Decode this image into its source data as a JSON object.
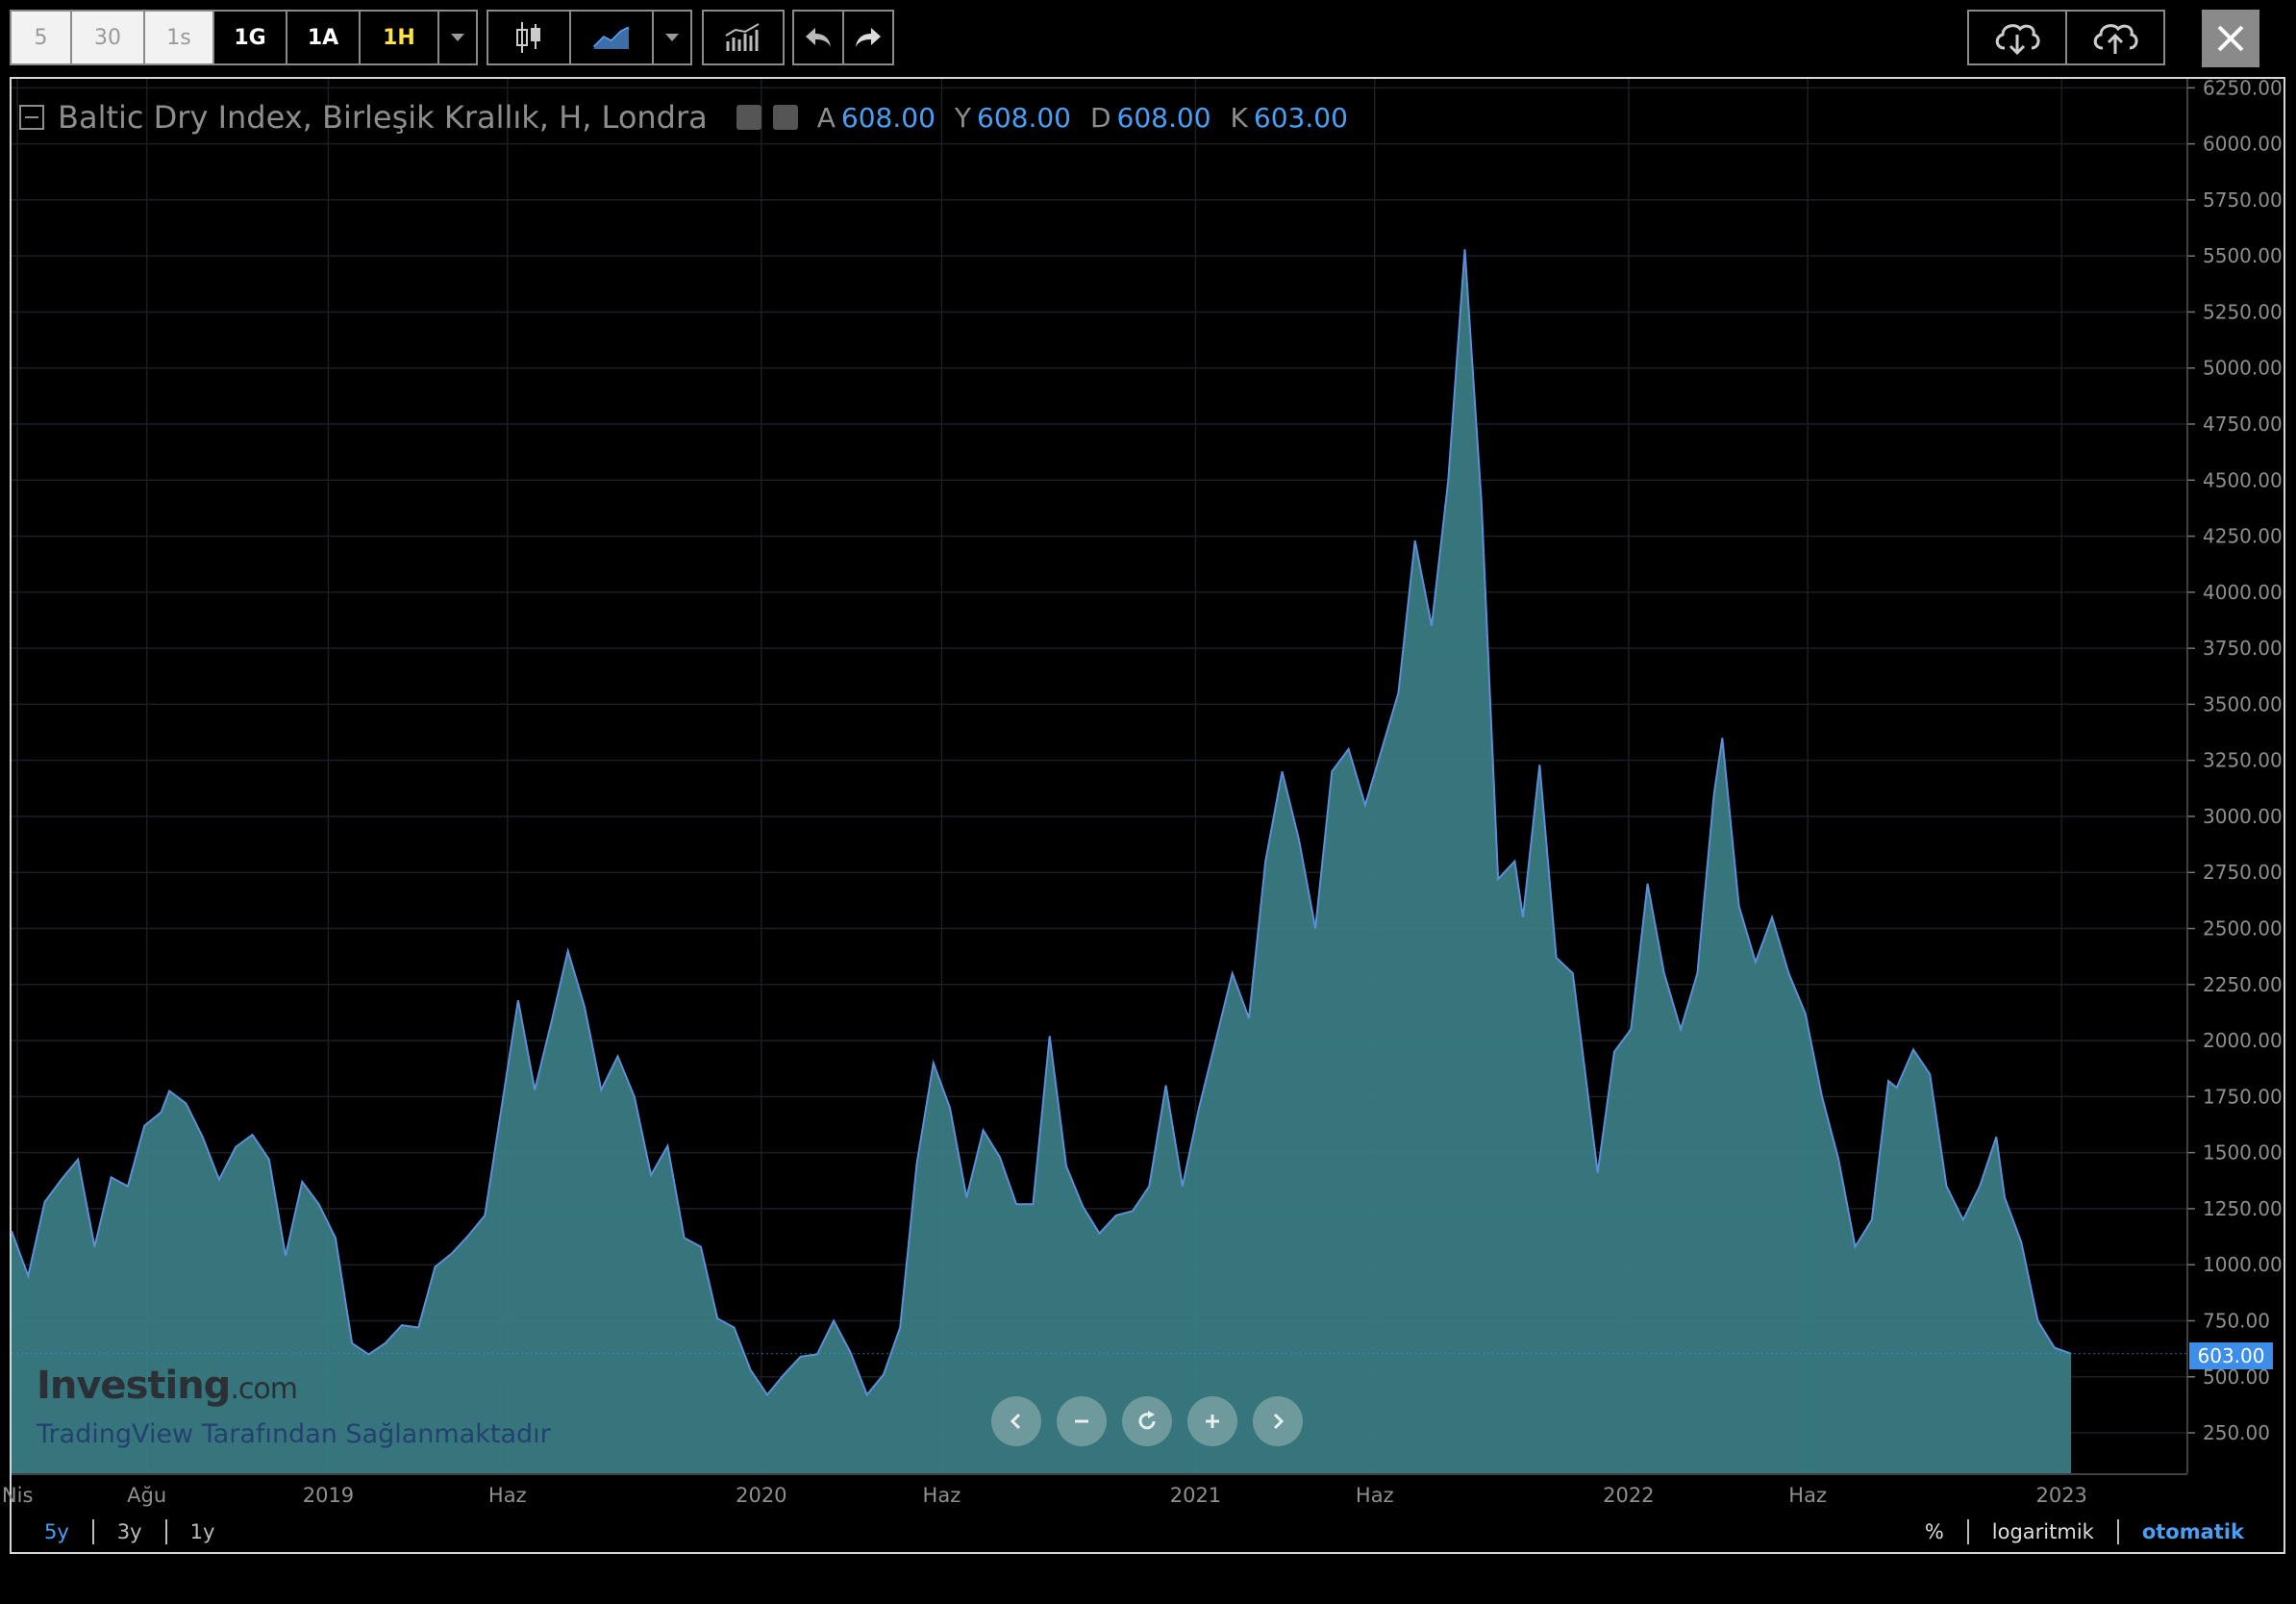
{
  "toolbar": {
    "intervals": [
      {
        "label": "5",
        "style": "light"
      },
      {
        "label": "30",
        "style": "light"
      },
      {
        "label": "1s",
        "style": "light"
      },
      {
        "label": "1G",
        "style": "selected"
      },
      {
        "label": "1A",
        "style": "selected"
      },
      {
        "label": "1H",
        "style": "yellow"
      }
    ],
    "icons": [
      "candlestick-icon",
      "line-chart-icon",
      "indicators-icon",
      "undo-icon",
      "redo-icon",
      "download-icon",
      "upload-icon",
      "close-icon"
    ]
  },
  "legend": {
    "title": "Baltic Dry Index, Birleşik Krallık, H, Londra",
    "open_label": "A",
    "open_value": "608.00",
    "high_label": "Y",
    "high_value": "608.00",
    "low_label": "D",
    "low_value": "608.00",
    "close_label": "K",
    "close_value": "603.00"
  },
  "watermark": {
    "logo_main": "Investing",
    "logo_suffix": ".com",
    "provider": "TradingView Tarafından Sağlanmaktadır"
  },
  "price_tag": "603.00",
  "range_buttons": {
    "five_year": "5y",
    "three_year": "3y",
    "one_year": "1y"
  },
  "scale_buttons": {
    "percent": "%",
    "log": "logaritmik",
    "auto": "otomatik"
  },
  "colors": {
    "area_fill": "#3a7f86",
    "line": "#5d8fd6",
    "accent": "#4a9ff5",
    "background": "#000000"
  },
  "chart_data": {
    "type": "area",
    "title": "Baltic Dry Index, Birleşik Krallık, H, Londra",
    "xlabel": "",
    "ylabel": "",
    "ylim": [
      70,
      6290
    ],
    "xlim": [
      "2018-04-09",
      "2023-04-17"
    ],
    "y_ticks": [
      "250.00",
      "500.00",
      "750.00",
      "1000.00",
      "1250.00",
      "1500.00",
      "1750.00",
      "2000.00",
      "2250.00",
      "2500.00",
      "2750.00",
      "3000.00",
      "3250.00",
      "3500.00",
      "3750.00",
      "4000.00",
      "4250.00",
      "4500.00",
      "4750.00",
      "5000.00",
      "5250.00",
      "5500.00",
      "5750.00",
      "6000.00",
      "6250.00"
    ],
    "x_ticks": [
      {
        "label": "Nis",
        "date": "2018-04-14"
      },
      {
        "label": "Ağu",
        "date": "2018-08-01"
      },
      {
        "label": "2019",
        "date": "2019-01-01"
      },
      {
        "label": "Haz",
        "date": "2019-06-01"
      },
      {
        "label": "2020",
        "date": "2020-01-01"
      },
      {
        "label": "Haz",
        "date": "2020-06-01"
      },
      {
        "label": "2021",
        "date": "2021-01-01"
      },
      {
        "label": "Haz",
        "date": "2021-06-01"
      },
      {
        "label": "2022",
        "date": "2022-01-01"
      },
      {
        "label": "Haz",
        "date": "2022-06-01"
      },
      {
        "label": "2023",
        "date": "2023-01-01"
      }
    ],
    "last_value": 603,
    "series": [
      {
        "values": [
          [
            "2018-04-09",
            1150
          ],
          [
            "2018-04-23",
            950
          ],
          [
            "2018-05-07",
            1280
          ],
          [
            "2018-05-21",
            1380
          ],
          [
            "2018-06-04",
            1470
          ],
          [
            "2018-06-18",
            1080
          ],
          [
            "2018-07-02",
            1390
          ],
          [
            "2018-07-16",
            1350
          ],
          [
            "2018-07-30",
            1620
          ],
          [
            "2018-08-13",
            1680
          ],
          [
            "2018-08-20",
            1775
          ],
          [
            "2018-09-03",
            1720
          ],
          [
            "2018-09-17",
            1570
          ],
          [
            "2018-10-01",
            1380
          ],
          [
            "2018-10-15",
            1525
          ],
          [
            "2018-10-29",
            1580
          ],
          [
            "2018-11-12",
            1470
          ],
          [
            "2018-11-26",
            1040
          ],
          [
            "2018-12-10",
            1370
          ],
          [
            "2018-12-24",
            1270
          ],
          [
            "2019-01-07",
            1120
          ],
          [
            "2019-01-21",
            650
          ],
          [
            "2019-02-04",
            600
          ],
          [
            "2019-02-18",
            650
          ],
          [
            "2019-03-04",
            730
          ],
          [
            "2019-03-18",
            720
          ],
          [
            "2019-04-01",
            990
          ],
          [
            "2019-04-15",
            1050
          ],
          [
            "2019-04-29",
            1130
          ],
          [
            "2019-05-13",
            1220
          ],
          [
            "2019-05-27",
            1700
          ],
          [
            "2019-06-10",
            2180
          ],
          [
            "2019-06-24",
            1780
          ],
          [
            "2019-07-08",
            2080
          ],
          [
            "2019-07-22",
            2400
          ],
          [
            "2019-08-05",
            2150
          ],
          [
            "2019-08-19",
            1780
          ],
          [
            "2019-09-02",
            1930
          ],
          [
            "2019-09-16",
            1750
          ],
          [
            "2019-09-30",
            1400
          ],
          [
            "2019-10-14",
            1530
          ],
          [
            "2019-10-28",
            1120
          ],
          [
            "2019-11-11",
            1080
          ],
          [
            "2019-11-25",
            760
          ],
          [
            "2019-12-09",
            720
          ],
          [
            "2019-12-23",
            530
          ],
          [
            "2020-01-06",
            420
          ],
          [
            "2020-01-20",
            510
          ],
          [
            "2020-02-03",
            590
          ],
          [
            "2020-02-17",
            600
          ],
          [
            "2020-03-02",
            750
          ],
          [
            "2020-03-16",
            610
          ],
          [
            "2020-03-30",
            420
          ],
          [
            "2020-04-13",
            510
          ],
          [
            "2020-04-27",
            720
          ],
          [
            "2020-05-11",
            1450
          ],
          [
            "2020-05-25",
            1900
          ],
          [
            "2020-06-08",
            1700
          ],
          [
            "2020-06-22",
            1300
          ],
          [
            "2020-07-06",
            1600
          ],
          [
            "2020-07-20",
            1480
          ],
          [
            "2020-08-03",
            1270
          ],
          [
            "2020-08-17",
            1270
          ],
          [
            "2020-08-31",
            2020
          ],
          [
            "2020-09-14",
            1440
          ],
          [
            "2020-09-28",
            1260
          ],
          [
            "2020-10-12",
            1140
          ],
          [
            "2020-10-26",
            1220
          ],
          [
            "2020-11-09",
            1240
          ],
          [
            "2020-11-23",
            1350
          ],
          [
            "2020-12-07",
            1800
          ],
          [
            "2020-12-21",
            1350
          ],
          [
            "2021-01-04",
            1700
          ],
          [
            "2021-01-18",
            2000
          ],
          [
            "2021-02-01",
            2300
          ],
          [
            "2021-02-15",
            2100
          ],
          [
            "2021-03-01",
            2800
          ],
          [
            "2021-03-15",
            3200
          ],
          [
            "2021-03-29",
            2900
          ],
          [
            "2021-04-12",
            2500
          ],
          [
            "2021-04-26",
            3200
          ],
          [
            "2021-05-10",
            3300
          ],
          [
            "2021-05-24",
            3050
          ],
          [
            "2021-06-07",
            3300
          ],
          [
            "2021-06-21",
            3550
          ],
          [
            "2021-07-05",
            4230
          ],
          [
            "2021-07-19",
            3850
          ],
          [
            "2021-08-02",
            4500
          ],
          [
            "2021-08-16",
            5530
          ],
          [
            "2021-08-30",
            4400
          ],
          [
            "2021-09-13",
            2720
          ],
          [
            "2021-09-27",
            2800
          ],
          [
            "2021-10-04",
            2550
          ],
          [
            "2021-10-18",
            3230
          ],
          [
            "2021-11-01",
            2370
          ],
          [
            "2021-11-15",
            2300
          ],
          [
            "2021-12-06",
            1410
          ],
          [
            "2021-12-20",
            1950
          ],
          [
            "2022-01-03",
            2050
          ],
          [
            "2022-01-17",
            2700
          ],
          [
            "2022-01-31",
            2300
          ],
          [
            "2022-02-14",
            2050
          ],
          [
            "2022-02-28",
            2300
          ],
          [
            "2022-03-14",
            3100
          ],
          [
            "2022-03-21",
            3350
          ],
          [
            "2022-04-04",
            2600
          ],
          [
            "2022-04-18",
            2350
          ],
          [
            "2022-05-02",
            2550
          ],
          [
            "2022-05-16",
            2300
          ],
          [
            "2022-05-30",
            2120
          ],
          [
            "2022-06-13",
            1750
          ],
          [
            "2022-06-27",
            1470
          ],
          [
            "2022-07-11",
            1080
          ],
          [
            "2022-07-25",
            1200
          ],
          [
            "2022-08-08",
            1820
          ],
          [
            "2022-08-15",
            1790
          ],
          [
            "2022-08-29",
            1960
          ],
          [
            "2022-09-12",
            1850
          ],
          [
            "2022-09-26",
            1350
          ],
          [
            "2022-10-10",
            1200
          ],
          [
            "2022-10-24",
            1350
          ],
          [
            "2022-11-07",
            1570
          ],
          [
            "2022-11-14",
            1300
          ],
          [
            "2022-11-28",
            1100
          ],
          [
            "2022-12-12",
            750
          ],
          [
            "2022-12-26",
            630
          ],
          [
            "2023-01-09",
            603
          ]
        ]
      }
    ]
  }
}
